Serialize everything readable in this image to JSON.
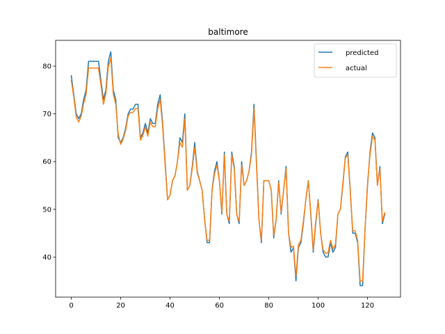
{
  "chart_data": {
    "type": "line",
    "title": "baltimore",
    "xlabel": "",
    "ylabel": "",
    "xlim": [
      -6.35,
      133.35
    ],
    "ylim": [
      31.6,
      85.4
    ],
    "xticks": [
      0,
      20,
      40,
      60,
      80,
      100,
      120
    ],
    "yticks": [
      40,
      50,
      60,
      70,
      80
    ],
    "grid": false,
    "legend_position": "top-right",
    "series": [
      {
        "name": "predicted",
        "color": "#1f77b4",
        "x": [
          0,
          1,
          2,
          3,
          4,
          5,
          6,
          7,
          8,
          9,
          10,
          11,
          12,
          13,
          14,
          15,
          16,
          17,
          18,
          19,
          20,
          21,
          22,
          23,
          24,
          25,
          26,
          27,
          28,
          29,
          30,
          31,
          32,
          33,
          34,
          35,
          36,
          37,
          38,
          39,
          40,
          41,
          42,
          43,
          44,
          45,
          46,
          47,
          48,
          49,
          50,
          51,
          52,
          53,
          54,
          55,
          56,
          57,
          58,
          59,
          60,
          61,
          62,
          63,
          64,
          65,
          66,
          67,
          68,
          69,
          70,
          71,
          72,
          73,
          74,
          75,
          76,
          77,
          78,
          79,
          80,
          81,
          82,
          83,
          84,
          85,
          86,
          87,
          88,
          89,
          90,
          91,
          92,
          93,
          94,
          95,
          96,
          97,
          98,
          99,
          100,
          101,
          102,
          103,
          104,
          105,
          106,
          107,
          108,
          109,
          110,
          111,
          112,
          113,
          114,
          115,
          116,
          117,
          118,
          119,
          120,
          121,
          122,
          123,
          124,
          125,
          126,
          127
        ],
        "values": [
          78,
          74,
          70,
          69,
          70,
          73,
          75,
          81,
          81,
          81,
          81,
          81,
          77,
          73,
          75,
          81,
          83,
          75,
          73,
          65,
          64,
          65,
          67,
          70,
          71,
          71,
          72,
          72,
          65,
          66,
          68,
          66,
          69,
          68,
          68,
          72,
          74,
          68,
          60,
          52,
          53,
          56,
          57,
          60,
          65,
          64,
          70,
          54,
          55,
          59,
          64,
          58,
          56,
          54,
          48,
          43,
          43,
          54,
          58,
          60,
          56,
          49,
          62,
          49,
          47,
          62,
          59,
          49,
          47,
          60,
          55,
          56,
          58,
          62,
          72,
          60,
          48,
          43,
          56,
          56,
          56,
          54,
          44,
          48,
          56,
          49,
          54,
          59,
          45,
          41,
          42,
          35,
          42,
          43,
          47,
          52,
          56,
          49,
          41,
          47,
          52,
          45,
          41,
          40,
          40,
          43,
          41,
          42,
          49,
          50,
          55,
          61,
          62,
          54,
          45,
          45,
          43,
          34,
          34,
          46,
          55,
          62,
          66,
          65,
          55,
          59,
          47,
          49
        ]
      },
      {
        "name": "actual",
        "color": "#ff7f0e",
        "x": [
          0,
          1,
          2,
          3,
          4,
          5,
          6,
          7,
          8,
          9,
          10,
          11,
          12,
          13,
          14,
          15,
          16,
          17,
          18,
          19,
          20,
          21,
          22,
          23,
          24,
          25,
          26,
          27,
          28,
          29,
          30,
          31,
          32,
          33,
          34,
          35,
          36,
          37,
          38,
          39,
          40,
          41,
          42,
          43,
          44,
          45,
          46,
          47,
          48,
          49,
          50,
          51,
          52,
          53,
          54,
          55,
          56,
          57,
          58,
          59,
          60,
          61,
          62,
          63,
          64,
          65,
          66,
          67,
          68,
          69,
          70,
          71,
          72,
          73,
          74,
          75,
          76,
          77,
          78,
          79,
          80,
          81,
          82,
          83,
          84,
          85,
          86,
          87,
          88,
          89,
          90,
          91,
          92,
          93,
          94,
          95,
          96,
          97,
          98,
          99,
          100,
          101,
          102,
          103,
          104,
          105,
          106,
          107,
          108,
          109,
          110,
          111,
          112,
          113,
          114,
          115,
          116,
          117,
          118,
          119,
          120,
          121,
          122,
          123,
          124,
          125,
          126,
          127
        ],
        "values": [
          77,
          73.5,
          69.3,
          68.3,
          69.5,
          72.2,
          74.1,
          79.6,
          79.6,
          79.6,
          79.6,
          79.6,
          76.1,
          72,
          74.2,
          79.9,
          81.7,
          74.2,
          72,
          65.8,
          63.6,
          64.7,
          66.5,
          69.5,
          70.3,
          70.3,
          71.1,
          71.1,
          64.5,
          65.5,
          67.3,
          65.3,
          68.3,
          67.3,
          67.3,
          71.1,
          73,
          67.3,
          59.3,
          52,
          53,
          56,
          57,
          60,
          64,
          63,
          69,
          54,
          55,
          58.5,
          63,
          57.7,
          55.9,
          54,
          47.8,
          43.5,
          43.5,
          53.7,
          57.4,
          59.3,
          55.9,
          49.4,
          61.4,
          48.9,
          47.5,
          61.4,
          58.5,
          48.9,
          47.5,
          59.3,
          55,
          56,
          58,
          61.4,
          71.1,
          59.3,
          47.8,
          43.5,
          56,
          56,
          56,
          54,
          44.5,
          48,
          55.6,
          49.4,
          54,
          58.5,
          45,
          42,
          42.3,
          36,
          42.6,
          43.5,
          47.5,
          52,
          55.9,
          49.4,
          41.5,
          47.5,
          51.7,
          45,
          41.5,
          40.8,
          40.8,
          43.5,
          41.7,
          42.6,
          49,
          50,
          55.5,
          60.8,
          61.4,
          53.7,
          45.5,
          45.5,
          43.5,
          35,
          35,
          46,
          55.5,
          61.4,
          65.3,
          64.5,
          55,
          58.5,
          47.5,
          49.3
        ]
      }
    ]
  }
}
